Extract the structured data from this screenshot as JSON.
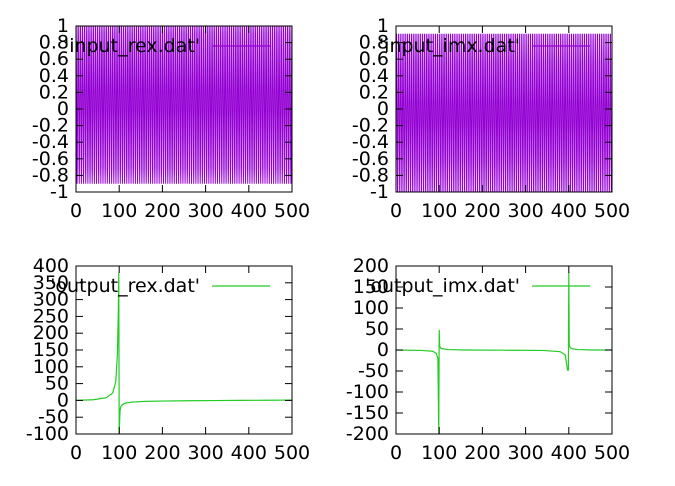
{
  "colors": {
    "input_series": "#9400d3",
    "output_series": "#22cc22",
    "axis": "#000000",
    "background": "#ffffff"
  },
  "chart_data": [
    {
      "type": "line",
      "position_word": "top-left",
      "series": [
        {
          "name": "'input_rex.dat'",
          "shape": "cos_oscillation",
          "cycles": 100,
          "points": 500,
          "amplitude": 1.0,
          "offset": 0.1
        }
      ],
      "xlim": [
        0,
        500
      ],
      "ylim": [
        -1,
        1
      ],
      "x_ticks": [
        0,
        100,
        200,
        300,
        400,
        500
      ],
      "y_ticks": [
        -1,
        -0.8,
        -0.6,
        -0.4,
        -0.2,
        0,
        0.2,
        0.4,
        0.6,
        0.8,
        1
      ],
      "x_tick_labels": [
        "0",
        "100",
        "200",
        "300",
        "400",
        "500"
      ],
      "y_tick_labels": [
        "-1",
        "-0.8",
        "-0.6",
        "-0.4",
        "-0.2",
        "0",
        "0.2",
        "0.4",
        "0.6",
        "0.8",
        "1"
      ],
      "legend": {
        "label": "'input_rex.dat'",
        "placement": "top-right"
      },
      "grid": false
    },
    {
      "type": "line",
      "position_word": "top-right",
      "series": [
        {
          "name": "'input_imx.dat'",
          "shape": "sin_oscillation",
          "cycles": 100,
          "points": 500,
          "amplitude": 1.0,
          "offset": -0.05
        }
      ],
      "xlim": [
        0,
        500
      ],
      "ylim": [
        -1,
        1
      ],
      "x_ticks": [
        0,
        100,
        200,
        300,
        400,
        500
      ],
      "y_ticks": [
        -1,
        -0.8,
        -0.6,
        -0.4,
        -0.2,
        0,
        0.2,
        0.4,
        0.6,
        0.8,
        1
      ],
      "x_tick_labels": [
        "0",
        "100",
        "200",
        "300",
        "400",
        "500"
      ],
      "y_tick_labels": [
        "-1",
        "-0.8",
        "-0.6",
        "-0.4",
        "-0.2",
        "0",
        "0.2",
        "0.4",
        "0.6",
        "0.8",
        "1"
      ],
      "legend": {
        "label": "'input_imx.dat'",
        "placement": "top-right"
      },
      "grid": false
    },
    {
      "type": "line",
      "position_word": "bottom-left",
      "series": [
        {
          "name": "'output_rex.dat'",
          "x": [
            0,
            40,
            70,
            85,
            92,
            96,
            98,
            99,
            100,
            101,
            102,
            104,
            108,
            115,
            130,
            160,
            200,
            260,
            320,
            380,
            440,
            500
          ],
          "y": [
            0,
            2,
            8,
            22,
            55,
            140,
            270,
            380,
            -100,
            -60,
            -30,
            -18,
            -12,
            -8,
            -5,
            -3,
            -2,
            -1,
            -0.5,
            0,
            0.5,
            1
          ]
        }
      ],
      "xlim": [
        0,
        500
      ],
      "ylim": [
        -100,
        400
      ],
      "x_ticks": [
        0,
        100,
        200,
        300,
        400,
        500
      ],
      "y_ticks": [
        -100,
        -50,
        0,
        50,
        100,
        150,
        200,
        250,
        300,
        350,
        400
      ],
      "x_tick_labels": [
        "0",
        "100",
        "200",
        "300",
        "400",
        "500"
      ],
      "y_tick_labels": [
        "-100",
        "-50",
        "0",
        "50",
        "100",
        "150",
        "200",
        "250",
        "300",
        "350",
        "400"
      ],
      "legend": {
        "label": "'output_rex.dat'",
        "placement": "top-right"
      },
      "grid": false
    },
    {
      "type": "line",
      "position_word": "bottom-right",
      "series": [
        {
          "name": "'output_imx.dat'",
          "x": [
            0,
            60,
            85,
            93,
            97,
            99,
            100,
            101,
            103,
            107,
            120,
            160,
            250,
            340,
            380,
            392,
            397,
            399,
            400,
            401,
            403,
            408,
            420,
            460,
            500
          ],
          "y": [
            0,
            -1,
            -3,
            -8,
            -20,
            -200,
            48,
            10,
            5,
            3,
            1,
            0,
            -0.5,
            -1,
            -4,
            -12,
            -48,
            -48,
            185,
            12,
            6,
            3,
            1,
            0,
            0
          ]
        }
      ],
      "xlim": [
        0,
        500
      ],
      "ylim": [
        -200,
        200
      ],
      "x_ticks": [
        0,
        100,
        200,
        300,
        400,
        500
      ],
      "y_ticks": [
        -200,
        -150,
        -100,
        -50,
        0,
        50,
        100,
        150,
        200
      ],
      "x_tick_labels": [
        "0",
        "100",
        "200",
        "300",
        "400",
        "500"
      ],
      "y_tick_labels": [
        "-200",
        "-150",
        "-100",
        "-50",
        "0",
        "50",
        "100",
        "150",
        "200"
      ],
      "legend": {
        "label": "'output_imx.dat'",
        "placement": "top-right"
      },
      "grid": false
    }
  ]
}
